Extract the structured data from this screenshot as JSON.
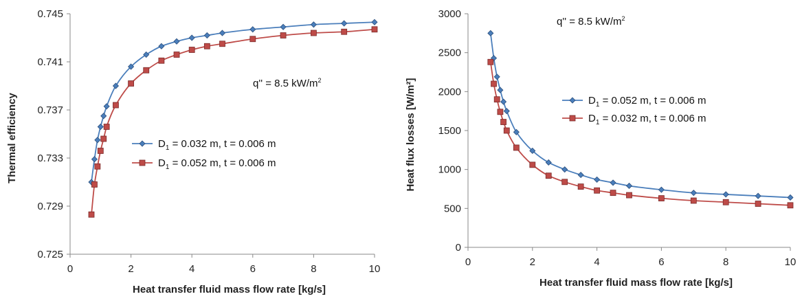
{
  "chart_data": [
    {
      "type": "line",
      "ylabel": "Thermal efficiency",
      "xlabel": "Heat transfer fluid mass flow rate [kg/s]",
      "xlim": [
        0,
        10
      ],
      "ylim": [
        0.725,
        0.745
      ],
      "xticks": [
        "0",
        "2",
        "4",
        "6",
        "8",
        "10"
      ],
      "yticks": [
        "0.725",
        "0.729",
        "0.733",
        "0.737",
        "0.741",
        "0.745"
      ],
      "annotation": {
        "base": "q'' = 8.5 kW/m",
        "sup": "2"
      },
      "legend_position": "center",
      "series": [
        {
          "legend_pre": "D",
          "legend_sub": "1",
          "legend_post": " = 0.032 m, t = 0.006 m",
          "color": "#4a7ebb",
          "marker": "diamond",
          "x": [
            0.7,
            0.8,
            0.9,
            1.0,
            1.1,
            1.2,
            1.5,
            2,
            2.5,
            3,
            3.5,
            4,
            4.5,
            5,
            6,
            7,
            8,
            9,
            10
          ],
          "y": [
            0.731,
            0.7329,
            0.7345,
            0.7356,
            0.7365,
            0.7373,
            0.739,
            0.7406,
            0.7416,
            0.7423,
            0.7427,
            0.743,
            0.7432,
            0.7434,
            0.7437,
            0.7439,
            0.7441,
            0.7442,
            0.7443
          ]
        },
        {
          "legend_pre": "D",
          "legend_sub": "1",
          "legend_post": " = 0.052 m, t = 0.006 m",
          "color": "#be4b48",
          "marker": "square",
          "x": [
            0.7,
            0.8,
            0.9,
            1.0,
            1.1,
            1.2,
            1.5,
            2,
            2.5,
            3,
            3.5,
            4,
            4.5,
            5,
            6,
            7,
            8,
            9,
            10
          ],
          "y": [
            0.7283,
            0.7308,
            0.7323,
            0.7336,
            0.7346,
            0.7356,
            0.7374,
            0.7392,
            0.7403,
            0.7411,
            0.7416,
            0.742,
            0.7423,
            0.7425,
            0.7429,
            0.7432,
            0.7434,
            0.7435,
            0.7437
          ]
        }
      ]
    },
    {
      "type": "line",
      "ylabel": "Heat flux losses [W/m²]",
      "xlabel": "Heat transfer fluid mass flow rate [kg/s]",
      "xlim": [
        0,
        10
      ],
      "ylim": [
        0,
        3000
      ],
      "xticks": [
        "0",
        "2",
        "4",
        "6",
        "8",
        "10"
      ],
      "yticks": [
        "0",
        "500",
        "1000",
        "1500",
        "2000",
        "2500",
        "3000"
      ],
      "annotation": {
        "base": "q'' = 8.5 kW/m",
        "sup": "2"
      },
      "legend_position": "center-right",
      "series": [
        {
          "legend_pre": "D",
          "legend_sub": "1",
          "legend_post": " = 0.052 m, t = 0.006 m",
          "color": "#4a7ebb",
          "marker": "diamond",
          "x": [
            0.7,
            0.8,
            0.9,
            1.0,
            1.1,
            1.2,
            1.5,
            2,
            2.5,
            3,
            3.5,
            4,
            4.5,
            5,
            6,
            7,
            8,
            9,
            10
          ],
          "y": [
            2750,
            2430,
            2190,
            2020,
            1870,
            1750,
            1480,
            1240,
            1090,
            1000,
            930,
            870,
            830,
            790,
            740,
            700,
            680,
            660,
            640
          ]
        },
        {
          "legend_pre": "D",
          "legend_sub": "1",
          "legend_post": " = 0.032 m, t = 0.006 m",
          "color": "#be4b48",
          "marker": "square",
          "x": [
            0.7,
            0.8,
            0.9,
            1.0,
            1.1,
            1.2,
            1.5,
            2,
            2.5,
            3,
            3.5,
            4,
            4.5,
            5,
            6,
            7,
            8,
            9,
            10
          ],
          "y": [
            2380,
            2100,
            1900,
            1740,
            1610,
            1500,
            1280,
            1060,
            920,
            840,
            780,
            730,
            700,
            670,
            630,
            600,
            580,
            560,
            540
          ]
        }
      ]
    }
  ]
}
